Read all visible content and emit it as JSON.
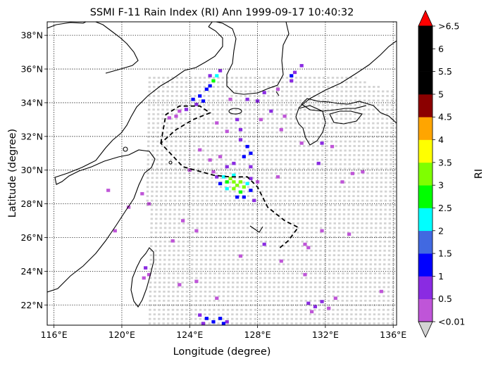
{
  "title": "SSMI F-11 Rain Index (RI) Ann 1999-09-17 10:40:32",
  "axes": {
    "xlabel": "Longitude (degree)",
    "ylabel": "Latitude (degree)",
    "x_range": [
      115.6,
      136.2
    ],
    "y_range": [
      20.8,
      38.8
    ],
    "x_ticks": [
      {
        "value": 116,
        "label": "116°E"
      },
      {
        "value": 120,
        "label": "120°E"
      },
      {
        "value": 124,
        "label": "124°E"
      },
      {
        "value": 128,
        "label": "128°E"
      },
      {
        "value": 132,
        "label": "132°E"
      },
      {
        "value": 136,
        "label": "136°E"
      }
    ],
    "y_ticks": [
      {
        "value": 22,
        "label": "22°N"
      },
      {
        "value": 24,
        "label": "24°N"
      },
      {
        "value": 26,
        "label": "26°N"
      },
      {
        "value": 28,
        "label": "28°N"
      },
      {
        "value": 30,
        "label": "30°N"
      },
      {
        "value": 32,
        "label": "32°N"
      },
      {
        "value": 34,
        "label": "34°N"
      },
      {
        "value": 36,
        "label": "36°N"
      },
      {
        "value": 38,
        "label": "38°N"
      }
    ],
    "grid": "dotted"
  },
  "colorbar": {
    "label": "RI",
    "tick_labels": [
      "<0.01",
      "0.5",
      "1",
      "1.5",
      "2",
      "2.5",
      "3",
      "3.5",
      "4",
      "4.5",
      "5",
      "5.5",
      "6",
      ">6.5"
    ],
    "under_color": "#d3d3d3",
    "over_color": "#ff0000",
    "colors": [
      "#bf55d8",
      "#8a2be2",
      "#0000ff",
      "#4169e1",
      "#00ffff",
      "#00ff00",
      "#7fff00",
      "#ffff00",
      "#ffa500",
      "#8b0000",
      "#000000",
      "#000000",
      "#000000"
    ]
  },
  "swath_color": "#d3d3d3",
  "track_color": "#000000",
  "chart_data": {
    "type": "heatmap",
    "title": "SSMI F-11 Rain Index (RI) Ann 1999-09-17 10:40:32",
    "xlabel": "Longitude (degree)",
    "ylabel": "Latitude (degree)",
    "xlim": [
      115.6,
      136.2
    ],
    "ylim": [
      20.8,
      38.8
    ],
    "swath": {
      "top_edge": [
        [
          121.5,
          35.5
        ],
        [
          124.0,
          36.2
        ],
        [
          126.5,
          36.6
        ],
        [
          128.5,
          36.9
        ],
        [
          130.5,
          36.7
        ],
        [
          133.0,
          35.8
        ],
        [
          136.2,
          34.6
        ]
      ],
      "bottom_edge": [
        [
          122.5,
          20.8
        ],
        [
          136.2,
          20.8
        ]
      ],
      "left_edge": [
        [
          121.5,
          35.5
        ],
        [
          119.0,
          32.5
        ],
        [
          118.2,
          29.0
        ],
        [
          118.8,
          24.5
        ],
        [
          119.5,
          20.8
        ]
      ]
    },
    "rain_cells": [
      {
        "lon": 126.6,
        "lat": 29.3,
        "value": 3.2
      },
      {
        "lon": 126.8,
        "lat": 29.1,
        "value": 3.3
      },
      {
        "lon": 127.0,
        "lat": 29.3,
        "value": 3.4
      },
      {
        "lon": 126.4,
        "lat": 29.5,
        "value": 3.0
      },
      {
        "lon": 126.2,
        "lat": 29.3,
        "value": 2.8
      },
      {
        "lon": 127.2,
        "lat": 29.0,
        "value": 3.0
      },
      {
        "lon": 126.6,
        "lat": 28.9,
        "value": 3.1
      },
      {
        "lon": 127.0,
        "lat": 28.7,
        "value": 2.9
      },
      {
        "lon": 126.0,
        "lat": 29.6,
        "value": 2.2
      },
      {
        "lon": 127.4,
        "lat": 29.2,
        "value": 2.1
      },
      {
        "lon": 126.6,
        "lat": 29.7,
        "value": 2.4
      },
      {
        "lon": 126.2,
        "lat": 28.9,
        "value": 2.1
      },
      {
        "lon": 125.8,
        "lat": 29.2,
        "value": 1.3
      },
      {
        "lon": 127.6,
        "lat": 28.8,
        "value": 1.2
      },
      {
        "lon": 126.8,
        "lat": 28.4,
        "value": 1.3
      },
      {
        "lon": 127.2,
        "lat": 28.4,
        "value": 1.1
      },
      {
        "lon": 125.6,
        "lat": 29.6,
        "value": 0.9
      },
      {
        "lon": 127.6,
        "lat": 29.5,
        "value": 0.8
      },
      {
        "lon": 127.8,
        "lat": 28.2,
        "value": 0.7
      },
      {
        "lon": 125.4,
        "lat": 29.9,
        "value": 0.3
      },
      {
        "lon": 127.6,
        "lat": 30.2,
        "value": 0.8
      },
      {
        "lon": 127.2,
        "lat": 30.8,
        "value": 1.1
      },
      {
        "lon": 127.4,
        "lat": 31.4,
        "value": 1.3
      },
      {
        "lon": 127.0,
        "lat": 31.8,
        "value": 0.8
      },
      {
        "lon": 127.6,
        "lat": 31.0,
        "value": 1.2
      },
      {
        "lon": 126.6,
        "lat": 30.4,
        "value": 0.6
      },
      {
        "lon": 126.2,
        "lat": 30.2,
        "value": 0.8
      },
      {
        "lon": 125.2,
        "lat": 30.6,
        "value": 0.4
      },
      {
        "lon": 125.8,
        "lat": 30.8,
        "value": 0.3
      },
      {
        "lon": 127.0,
        "lat": 32.4,
        "value": 0.6
      },
      {
        "lon": 126.2,
        "lat": 32.3,
        "value": 0.4
      },
      {
        "lon": 125.6,
        "lat": 32.8,
        "value": 0.3
      },
      {
        "lon": 126.8,
        "lat": 33.0,
        "value": 0.5
      },
      {
        "lon": 125.6,
        "lat": 35.6,
        "value": 2.1
      },
      {
        "lon": 125.4,
        "lat": 35.3,
        "value": 2.8
      },
      {
        "lon": 125.2,
        "lat": 35.0,
        "value": 1.3
      },
      {
        "lon": 125.0,
        "lat": 34.8,
        "value": 1.1
      },
      {
        "lon": 124.6,
        "lat": 34.4,
        "value": 1.2
      },
      {
        "lon": 124.2,
        "lat": 34.2,
        "value": 1.4
      },
      {
        "lon": 124.8,
        "lat": 34.1,
        "value": 1.0
      },
      {
        "lon": 124.4,
        "lat": 33.9,
        "value": 0.8
      },
      {
        "lon": 123.8,
        "lat": 33.6,
        "value": 0.5
      },
      {
        "lon": 123.4,
        "lat": 33.5,
        "value": 0.4
      },
      {
        "lon": 125.8,
        "lat": 35.9,
        "value": 0.6
      },
      {
        "lon": 125.2,
        "lat": 35.6,
        "value": 0.5
      },
      {
        "lon": 122.8,
        "lat": 33.1,
        "value": 0.3
      },
      {
        "lon": 123.2,
        "lat": 33.2,
        "value": 0.4
      },
      {
        "lon": 126.4,
        "lat": 34.2,
        "value": 0.4
      },
      {
        "lon": 127.4,
        "lat": 34.2,
        "value": 0.5
      },
      {
        "lon": 128.0,
        "lat": 34.1,
        "value": 0.6
      },
      {
        "lon": 128.4,
        "lat": 34.6,
        "value": 0.7
      },
      {
        "lon": 129.2,
        "lat": 34.8,
        "value": 0.4
      },
      {
        "lon": 130.0,
        "lat": 35.3,
        "value": 0.5
      },
      {
        "lon": 130.2,
        "lat": 35.8,
        "value": 0.9
      },
      {
        "lon": 130.6,
        "lat": 36.2,
        "value": 0.6
      },
      {
        "lon": 130.0,
        "lat": 35.6,
        "value": 1.1
      },
      {
        "lon": 128.8,
        "lat": 33.5,
        "value": 0.5
      },
      {
        "lon": 128.2,
        "lat": 33.0,
        "value": 0.4
      },
      {
        "lon": 129.6,
        "lat": 33.2,
        "value": 0.3
      },
      {
        "lon": 129.4,
        "lat": 32.4,
        "value": 0.4
      },
      {
        "lon": 130.6,
        "lat": 31.6,
        "value": 0.4
      },
      {
        "lon": 131.8,
        "lat": 31.6,
        "value": 0.5
      },
      {
        "lon": 132.4,
        "lat": 31.4,
        "value": 0.4
      },
      {
        "lon": 131.6,
        "lat": 30.4,
        "value": 0.5
      },
      {
        "lon": 133.6,
        "lat": 29.8,
        "value": 0.3
      },
      {
        "lon": 134.2,
        "lat": 29.9,
        "value": 0.4
      },
      {
        "lon": 133.0,
        "lat": 29.3,
        "value": 0.3
      },
      {
        "lon": 128.0,
        "lat": 29.3,
        "value": 0.3
      },
      {
        "lon": 129.2,
        "lat": 29.6,
        "value": 0.3
      },
      {
        "lon": 124.6,
        "lat": 31.2,
        "value": 0.3
      },
      {
        "lon": 124.0,
        "lat": 30.0,
        "value": 0.4
      },
      {
        "lon": 121.2,
        "lat": 28.6,
        "value": 0.3
      },
      {
        "lon": 121.6,
        "lat": 28.0,
        "value": 0.3
      },
      {
        "lon": 119.2,
        "lat": 28.8,
        "value": 0.3
      },
      {
        "lon": 120.4,
        "lat": 27.8,
        "value": 0.3
      },
      {
        "lon": 119.6,
        "lat": 26.4,
        "value": 0.3
      },
      {
        "lon": 123.6,
        "lat": 27.0,
        "value": 0.3
      },
      {
        "lon": 124.4,
        "lat": 26.4,
        "value": 0.4
      },
      {
        "lon": 123.0,
        "lat": 25.8,
        "value": 0.3
      },
      {
        "lon": 128.4,
        "lat": 25.6,
        "value": 0.5
      },
      {
        "lon": 130.8,
        "lat": 25.6,
        "value": 0.4
      },
      {
        "lon": 131.0,
        "lat": 25.4,
        "value": 0.3
      },
      {
        "lon": 131.8,
        "lat": 26.4,
        "value": 0.3
      },
      {
        "lon": 133.4,
        "lat": 26.2,
        "value": 0.4
      },
      {
        "lon": 127.0,
        "lat": 24.9,
        "value": 0.3
      },
      {
        "lon": 129.4,
        "lat": 24.6,
        "value": 0.3
      },
      {
        "lon": 130.8,
        "lat": 23.8,
        "value": 0.3
      },
      {
        "lon": 121.4,
        "lat": 24.2,
        "value": 0.5
      },
      {
        "lon": 121.6,
        "lat": 23.8,
        "value": 0.4
      },
      {
        "lon": 121.3,
        "lat": 23.6,
        "value": 0.3
      },
      {
        "lon": 123.4,
        "lat": 23.2,
        "value": 0.4
      },
      {
        "lon": 124.4,
        "lat": 23.4,
        "value": 0.3
      },
      {
        "lon": 125.6,
        "lat": 22.4,
        "value": 0.3
      },
      {
        "lon": 131.0,
        "lat": 22.1,
        "value": 0.5
      },
      {
        "lon": 131.4,
        "lat": 21.9,
        "value": 0.6
      },
      {
        "lon": 131.8,
        "lat": 22.2,
        "value": 0.5
      },
      {
        "lon": 132.2,
        "lat": 21.8,
        "value": 0.4
      },
      {
        "lon": 132.6,
        "lat": 22.4,
        "value": 0.4
      },
      {
        "lon": 131.2,
        "lat": 21.6,
        "value": 0.3
      },
      {
        "lon": 135.3,
        "lat": 22.8,
        "value": 0.4
      },
      {
        "lon": 124.6,
        "lat": 21.4,
        "value": 0.5
      },
      {
        "lon": 125.0,
        "lat": 21.2,
        "value": 1.2
      },
      {
        "lon": 125.4,
        "lat": 21.0,
        "value": 1.4
      },
      {
        "lon": 125.8,
        "lat": 21.2,
        "value": 1.1
      },
      {
        "lon": 126.2,
        "lat": 21.0,
        "value": 0.8
      },
      {
        "lon": 124.8,
        "lat": 20.9,
        "value": 0.6
      },
      {
        "lon": 126.0,
        "lat": 20.9,
        "value": 1.3
      }
    ],
    "track": [
      [
        122.3,
        31.6
      ],
      [
        122.6,
        33.3
      ],
      [
        123.4,
        33.8
      ],
      [
        124.6,
        33.8
      ],
      [
        125.2,
        33.4
      ],
      [
        124.2,
        33.0
      ],
      [
        123.2,
        32.4
      ],
      [
        122.3,
        31.6
      ],
      [
        123.6,
        30.2
      ],
      [
        125.4,
        29.7
      ],
      [
        126.4,
        29.6
      ],
      [
        127.4,
        29.6
      ],
      [
        128.0,
        29.0
      ],
      [
        128.6,
        27.8
      ],
      [
        129.6,
        27.0
      ],
      [
        130.4,
        26.6
      ],
      [
        129.8,
        25.8
      ],
      [
        129.2,
        25.3
      ]
    ]
  }
}
